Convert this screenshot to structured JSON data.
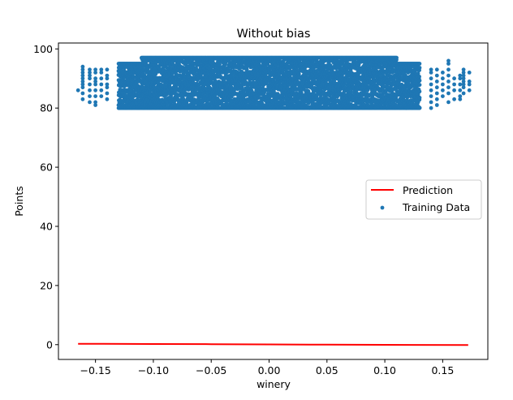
{
  "chart_data": {
    "type": "scatter",
    "title": "Without bias",
    "xlabel": "winery",
    "ylabel": "Points",
    "xlim": [
      -0.182,
      0.189
    ],
    "ylim": [
      -5,
      102
    ],
    "xticks": [
      -0.15,
      -0.1,
      -0.05,
      0.0,
      0.05,
      0.1,
      0.15
    ],
    "xtick_labels": [
      "−0.15",
      "−0.10",
      "−0.05",
      "0.00",
      "0.05",
      "0.10",
      "0.15"
    ],
    "yticks": [
      0,
      20,
      40,
      60,
      80,
      100
    ],
    "ytick_labels": [
      "0",
      "20",
      "40",
      "60",
      "80",
      "100"
    ],
    "grid": false,
    "legend_position": "center-right",
    "series": [
      {
        "name": "Prediction",
        "kind": "line",
        "color": "#ff0000",
        "x": [
          -0.165,
          -0.1,
          -0.05,
          0.0,
          0.05,
          0.1,
          0.172
        ],
        "y": [
          0.3,
          0.22,
          0.15,
          0.08,
          0.0,
          -0.07,
          -0.15
        ]
      },
      {
        "name": "Training Data",
        "kind": "scatter",
        "color": "#1f77b4",
        "x_range": [
          -0.165,
          0.173
        ],
        "y_range": [
          80,
          97
        ],
        "dense_x_range": [
          -0.13,
          0.13
        ],
        "sparse_columns": [
          {
            "x": -0.165,
            "y": [
              86
            ]
          },
          {
            "x": -0.161,
            "y": [
              83,
              85,
              87,
              88,
              89,
              90,
              91,
              92,
              93,
              94
            ]
          },
          {
            "x": -0.155,
            "y": [
              82,
              84,
              86,
              88,
              90,
              91,
              92,
              93
            ]
          },
          {
            "x": -0.15,
            "y": [
              81,
              82,
              84,
              86,
              88,
              89,
              90,
              92,
              93
            ]
          },
          {
            "x": -0.145,
            "y": [
              84,
              86,
              88,
              90,
              92,
              93
            ]
          },
          {
            "x": -0.14,
            "y": [
              83,
              85,
              87,
              88,
              90,
              91,
              93
            ]
          },
          {
            "x": 0.14,
            "y": [
              80,
              82,
              84,
              86,
              88,
              90,
              92,
              93
            ]
          },
          {
            "x": 0.145,
            "y": [
              81,
              83,
              85,
              87,
              89,
              91,
              93
            ]
          },
          {
            "x": 0.15,
            "y": [
              84,
              86,
              88,
              90,
              92
            ]
          },
          {
            "x": 0.155,
            "y": [
              82,
              85,
              87,
              89,
              91,
              93,
              95,
              96
            ]
          },
          {
            "x": 0.16,
            "y": [
              83,
              86,
              88,
              90
            ]
          },
          {
            "x": 0.165,
            "y": [
              83,
              84,
              86,
              88,
              90,
              91
            ]
          },
          {
            "x": 0.168,
            "y": [
              85,
              87,
              88,
              89,
              90,
              91,
              92,
              93
            ]
          },
          {
            "x": 0.173,
            "y": [
              86,
              88,
              89,
              92
            ]
          }
        ]
      }
    ]
  }
}
